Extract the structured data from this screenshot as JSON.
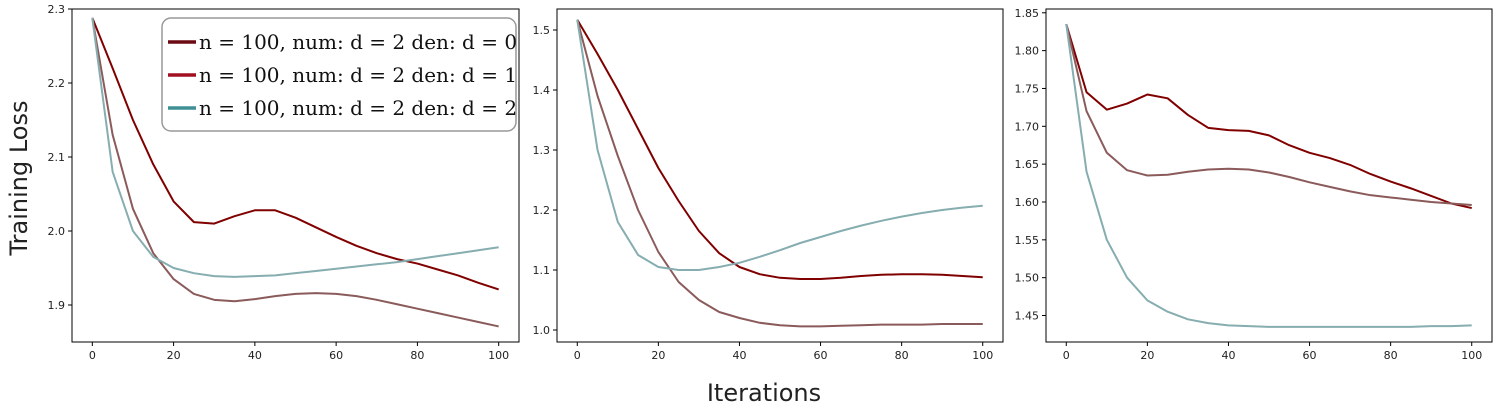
{
  "figure": {
    "xlabel": "Iterations",
    "ylabel": "Training Loss"
  },
  "legend": {
    "placement": "top-right",
    "entries": [
      {
        "label": "n = 100, num: d = 2 den: d = 0",
        "color": "#6b0a12"
      },
      {
        "label": "n = 100, num: d = 2 den: d = 1",
        "color": "#a01020"
      },
      {
        "label": "n = 100, num: d = 2 den: d = 2",
        "color": "#3f8f94"
      }
    ]
  },
  "chart_data": [
    {
      "type": "line",
      "title": "",
      "xlim": [
        -5,
        105
      ],
      "ylim": [
        1.85,
        2.3
      ],
      "xticks": [
        0,
        20,
        40,
        60,
        80,
        100
      ],
      "yticks": [
        1.9,
        2.0,
        2.1,
        2.2,
        2.3
      ],
      "ytick_labels": [
        "1.9",
        "2.0",
        "2.1",
        "2.2",
        "2.3"
      ],
      "series": [
        {
          "color": "#800000",
          "x": [
            0,
            5,
            10,
            15,
            20,
            25,
            30,
            35,
            40,
            45,
            50,
            55,
            60,
            65,
            70,
            75,
            80,
            85,
            90,
            95,
            100
          ],
          "y": [
            2.288,
            2.22,
            2.15,
            2.09,
            2.04,
            2.012,
            2.01,
            2.02,
            2.028,
            2.028,
            2.018,
            2.005,
            1.992,
            1.98,
            1.97,
            1.962,
            1.956,
            1.948,
            1.94,
            1.93,
            1.921
          ]
        },
        {
          "color": "#8b5a5a",
          "x": [
            0,
            5,
            10,
            15,
            20,
            25,
            30,
            35,
            40,
            45,
            50,
            55,
            60,
            65,
            70,
            75,
            80,
            85,
            90,
            95,
            100
          ],
          "y": [
            2.288,
            2.13,
            2.03,
            1.97,
            1.935,
            1.915,
            1.907,
            1.905,
            1.908,
            1.912,
            1.915,
            1.916,
            1.915,
            1.912,
            1.907,
            1.901,
            1.895,
            1.889,
            1.883,
            1.877,
            1.871
          ]
        },
        {
          "color": "#86adb0",
          "x": [
            0,
            5,
            10,
            15,
            20,
            25,
            30,
            35,
            40,
            45,
            50,
            55,
            60,
            65,
            70,
            75,
            80,
            85,
            90,
            95,
            100
          ],
          "y": [
            2.288,
            2.08,
            2.0,
            1.965,
            1.95,
            1.943,
            1.939,
            1.938,
            1.939,
            1.94,
            1.943,
            1.946,
            1.949,
            1.952,
            1.955,
            1.958,
            1.962,
            1.966,
            1.97,
            1.974,
            1.978
          ]
        }
      ]
    },
    {
      "type": "line",
      "title": "",
      "xlim": [
        -5,
        105
      ],
      "ylim": [
        0.98,
        1.535
      ],
      "xticks": [
        0,
        20,
        40,
        60,
        80,
        100
      ],
      "yticks": [
        1.0,
        1.1,
        1.2,
        1.3,
        1.4,
        1.5
      ],
      "ytick_labels": [
        "1.0",
        "1.1",
        "1.2",
        "1.3",
        "1.4",
        "1.5"
      ],
      "series": [
        {
          "color": "#800000",
          "x": [
            0,
            5,
            10,
            15,
            20,
            25,
            30,
            35,
            40,
            45,
            50,
            55,
            60,
            65,
            70,
            75,
            80,
            85,
            90,
            95,
            100
          ],
          "y": [
            1.517,
            1.46,
            1.4,
            1.335,
            1.27,
            1.215,
            1.165,
            1.128,
            1.105,
            1.093,
            1.087,
            1.085,
            1.085,
            1.087,
            1.09,
            1.092,
            1.093,
            1.093,
            1.092,
            1.09,
            1.088
          ]
        },
        {
          "color": "#8b5a5a",
          "x": [
            0,
            5,
            10,
            15,
            20,
            25,
            30,
            35,
            40,
            45,
            50,
            55,
            60,
            65,
            70,
            75,
            80,
            85,
            90,
            95,
            100
          ],
          "y": [
            1.517,
            1.39,
            1.29,
            1.2,
            1.13,
            1.08,
            1.05,
            1.03,
            1.02,
            1.012,
            1.008,
            1.006,
            1.006,
            1.007,
            1.008,
            1.009,
            1.009,
            1.009,
            1.01,
            1.01,
            1.01
          ]
        },
        {
          "color": "#86adb0",
          "x": [
            0,
            5,
            10,
            15,
            20,
            25,
            30,
            35,
            40,
            45,
            50,
            55,
            60,
            65,
            70,
            75,
            80,
            85,
            90,
            95,
            100
          ],
          "y": [
            1.517,
            1.3,
            1.18,
            1.125,
            1.105,
            1.1,
            1.1,
            1.105,
            1.112,
            1.122,
            1.133,
            1.145,
            1.155,
            1.165,
            1.174,
            1.182,
            1.189,
            1.195,
            1.2,
            1.204,
            1.207
          ]
        }
      ]
    },
    {
      "type": "line",
      "title": "",
      "xlim": [
        -5,
        105
      ],
      "ylim": [
        1.415,
        1.855
      ],
      "xticks": [
        0,
        20,
        40,
        60,
        80,
        100
      ],
      "yticks": [
        1.45,
        1.5,
        1.55,
        1.6,
        1.65,
        1.7,
        1.75,
        1.8,
        1.85
      ],
      "ytick_labels": [
        "1.45",
        "1.50",
        "1.55",
        "1.60",
        "1.65",
        "1.70",
        "1.75",
        "1.80",
        "1.85"
      ],
      "series": [
        {
          "color": "#800000",
          "x": [
            0,
            5,
            10,
            15,
            20,
            25,
            30,
            35,
            40,
            45,
            50,
            55,
            60,
            65,
            70,
            75,
            80,
            85,
            90,
            95,
            100
          ],
          "y": [
            1.835,
            1.745,
            1.722,
            1.73,
            1.742,
            1.737,
            1.715,
            1.698,
            1.695,
            1.694,
            1.688,
            1.675,
            1.665,
            1.658,
            1.649,
            1.637,
            1.627,
            1.618,
            1.608,
            1.598,
            1.592
          ]
        },
        {
          "color": "#8b5a5a",
          "x": [
            0,
            5,
            10,
            15,
            20,
            25,
            30,
            35,
            40,
            45,
            50,
            55,
            60,
            65,
            70,
            75,
            80,
            85,
            90,
            95,
            100
          ],
          "y": [
            1.835,
            1.72,
            1.665,
            1.642,
            1.635,
            1.636,
            1.64,
            1.643,
            1.644,
            1.643,
            1.639,
            1.633,
            1.626,
            1.62,
            1.614,
            1.609,
            1.606,
            1.603,
            1.6,
            1.598,
            1.596
          ]
        },
        {
          "color": "#86adb0",
          "x": [
            0,
            5,
            10,
            15,
            20,
            25,
            30,
            35,
            40,
            45,
            50,
            55,
            60,
            65,
            70,
            75,
            80,
            85,
            90,
            95,
            100
          ],
          "y": [
            1.835,
            1.64,
            1.55,
            1.5,
            1.47,
            1.455,
            1.445,
            1.44,
            1.437,
            1.436,
            1.435,
            1.435,
            1.435,
            1.435,
            1.435,
            1.435,
            1.435,
            1.435,
            1.436,
            1.436,
            1.437
          ]
        }
      ]
    }
  ]
}
